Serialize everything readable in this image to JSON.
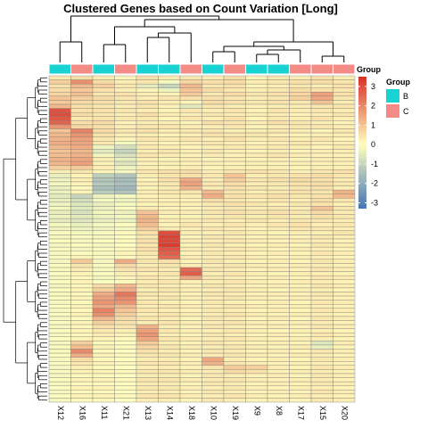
{
  "chart_data": {
    "type": "heatmap",
    "title": "Clustered Genes based on Count Variation [Long]",
    "columns": [
      "X12",
      "X16",
      "X11",
      "X21",
      "X13",
      "X14",
      "X18",
      "X10",
      "X19",
      "X9",
      "X8",
      "X17",
      "X15",
      "X20"
    ],
    "column_groups": [
      "B",
      "C",
      "B",
      "C",
      "B",
      "B",
      "C",
      "B",
      "C",
      "B",
      "B",
      "C",
      "C",
      "C"
    ],
    "annotation_track_label": "Group",
    "group_legend": {
      "title": "Group",
      "entries": [
        {
          "label": "B",
          "color": "#19d3d3"
        },
        {
          "label": "C",
          "color": "#f58b87"
        }
      ]
    },
    "color_scale": {
      "min": -3.3,
      "max": 3.5,
      "ticks": [
        3,
        2,
        1,
        0,
        -1,
        -2,
        -3
      ],
      "colors": {
        "low": "#4575b4",
        "mid": "#ffffbf",
        "high": "#d73027"
      }
    },
    "n_rows": 80,
    "cell_border_color": "#808080",
    "values": [
      [
        0.4,
        0.6,
        0.3,
        0.2,
        0.5,
        0.3,
        0.4,
        0.3,
        0.6,
        0.2,
        0.4,
        0.3,
        0.5,
        0.3
      ],
      [
        0.8,
        1.9,
        0.6,
        0.3,
        0.4,
        -0.2,
        0.7,
        0.5,
        0.6,
        0.3,
        0.4,
        0.5,
        0.6,
        0.4
      ],
      [
        0.5,
        1.2,
        0.8,
        0.4,
        -0.5,
        -1.0,
        1.2,
        0.4,
        0.5,
        0.2,
        0.3,
        0.4,
        0.3,
        0.5
      ],
      [
        0.6,
        0.9,
        0.5,
        0.3,
        0.2,
        -0.3,
        1.0,
        0.6,
        0.4,
        0.3,
        0.4,
        0.6,
        0.5,
        0.4
      ],
      [
        0.7,
        1.1,
        0.4,
        0.5,
        0.3,
        0.2,
        0.9,
        0.4,
        0.6,
        0.4,
        0.5,
        0.7,
        1.6,
        0.5
      ],
      [
        1.0,
        0.8,
        0.6,
        0.4,
        0.3,
        0.4,
        0.5,
        0.5,
        0.4,
        0.3,
        0.4,
        0.8,
        1.5,
        0.4
      ],
      [
        0.9,
        0.6,
        0.5,
        0.4,
        0.5,
        0.3,
        0.2,
        0.6,
        0.5,
        0.4,
        0.5,
        0.4,
        1.0,
        0.3
      ],
      [
        1.2,
        0.5,
        0.4,
        0.3,
        0.4,
        0.2,
        -0.5,
        0.4,
        0.3,
        0.2,
        0.3,
        0.3,
        0.4,
        0.4
      ],
      [
        2.9,
        0.5,
        0.5,
        0.4,
        0.3,
        0.2,
        0.4,
        0.3,
        0.4,
        0.2,
        0.4,
        0.3,
        0.4,
        0.3
      ],
      [
        3.0,
        0.6,
        0.4,
        0.3,
        0.5,
        0.3,
        0.3,
        0.4,
        0.3,
        0.3,
        0.3,
        0.2,
        0.3,
        0.4
      ],
      [
        2.8,
        0.4,
        0.5,
        0.4,
        0.4,
        0.2,
        0.4,
        0.3,
        0.5,
        0.2,
        0.4,
        0.3,
        0.5,
        0.3
      ],
      [
        2.6,
        0.5,
        0.6,
        0.2,
        0.3,
        0.3,
        0.2,
        0.5,
        0.4,
        0.3,
        0.5,
        0.4,
        0.3,
        0.2
      ],
      [
        1.8,
        0.7,
        0.5,
        0.3,
        0.4,
        0.4,
        0.3,
        0.3,
        0.4,
        0.2,
        0.3,
        0.4,
        0.4,
        0.3
      ],
      [
        1.0,
        2.1,
        0.6,
        0.4,
        0.5,
        0.3,
        0.4,
        0.4,
        0.3,
        0.3,
        0.4,
        0.3,
        0.2,
        0.4
      ],
      [
        1.2,
        1.8,
        0.5,
        0.3,
        0.3,
        0.2,
        0.3,
        0.5,
        0.4,
        0.4,
        0.3,
        0.2,
        0.3,
        0.3
      ],
      [
        1.3,
        1.6,
        0.4,
        0.2,
        0.4,
        0.3,
        0.4,
        0.3,
        0.5,
        0.3,
        0.4,
        0.3,
        0.4,
        0.2
      ],
      [
        1.4,
        1.5,
        0.4,
        -0.2,
        0.3,
        0.2,
        0.3,
        0.4,
        0.3,
        0.2,
        0.3,
        0.4,
        0.3,
        0.3
      ],
      [
        1.2,
        1.4,
        -0.3,
        -0.8,
        0.4,
        0.3,
        0.2,
        0.3,
        0.4,
        0.3,
        0.4,
        0.3,
        0.2,
        0.4
      ],
      [
        1.0,
        1.2,
        -0.5,
        -1.0,
        0.3,
        0.4,
        0.3,
        0.4,
        0.3,
        0.2,
        0.3,
        0.2,
        0.3,
        0.3
      ],
      [
        1.1,
        1.3,
        -0.2,
        -0.7,
        0.4,
        0.3,
        0.2,
        0.3,
        0.2,
        0.3,
        0.4,
        0.3,
        0.2,
        0.2
      ],
      [
        1.3,
        1.5,
        0.3,
        -0.4,
        0.3,
        0.2,
        0.3,
        0.2,
        0.3,
        0.2,
        0.3,
        0.2,
        0.3,
        0.3
      ],
      [
        1.2,
        1.6,
        0.2,
        -0.6,
        0.2,
        0.3,
        0.2,
        0.3,
        0.2,
        0.3,
        0.2,
        0.3,
        0.2,
        0.2
      ],
      [
        0.8,
        0.9,
        0.3,
        -0.3,
        0.3,
        0.2,
        0.3,
        0.2,
        0.3,
        0.2,
        0.3,
        0.2,
        0.3,
        0.3
      ],
      [
        0.3,
        0.4,
        0.2,
        -0.2,
        0.4,
        0.5,
        0.6,
        0.3,
        0.4,
        0.5,
        0.4,
        0.3,
        0.4,
        0.5
      ],
      [
        -0.4,
        0.2,
        -1.2,
        -1.4,
        0.3,
        0.4,
        0.5,
        0.4,
        1.0,
        0.3,
        0.4,
        0.5,
        0.6,
        0.4
      ],
      [
        -0.3,
        0.3,
        -1.4,
        -1.6,
        0.2,
        0.5,
        1.4,
        0.3,
        0.8,
        0.4,
        0.5,
        0.6,
        0.5,
        0.3
      ],
      [
        -0.2,
        0.2,
        -1.3,
        -1.5,
        0.3,
        0.4,
        1.6,
        0.4,
        0.6,
        0.3,
        0.4,
        0.5,
        0.6,
        0.4
      ],
      [
        -0.4,
        0.1,
        -1.5,
        -1.7,
        0.2,
        0.3,
        1.3,
        0.3,
        0.5,
        0.4,
        0.3,
        0.4,
        0.5,
        0.3
      ],
      [
        -0.3,
        0.2,
        -1.2,
        -1.4,
        0.3,
        0.4,
        0.4,
        1.2,
        0.4,
        0.3,
        0.4,
        0.5,
        0.4,
        1.3
      ],
      [
        -0.5,
        -1.0,
        -0.3,
        -0.2,
        0.2,
        0.3,
        0.3,
        1.4,
        0.5,
        0.4,
        0.5,
        0.4,
        0.5,
        1.2
      ],
      [
        -0.4,
        -0.8,
        -0.2,
        -0.3,
        0.3,
        0.2,
        0.2,
        0.6,
        0.4,
        0.3,
        0.4,
        0.3,
        0.6,
        0.4
      ],
      [
        -0.3,
        -0.6,
        -0.4,
        -0.2,
        0.2,
        0.3,
        0.3,
        0.4,
        0.5,
        0.4,
        0.3,
        0.4,
        0.5,
        0.3
      ],
      [
        -0.2,
        -0.5,
        -0.3,
        -0.1,
        0.3,
        0.2,
        0.2,
        0.3,
        0.4,
        0.3,
        0.4,
        0.3,
        1.0,
        0.4
      ],
      [
        -0.4,
        -0.7,
        -0.2,
        -0.3,
        1.0,
        0.3,
        0.3,
        0.4,
        0.5,
        0.4,
        0.5,
        0.4,
        0.6,
        0.3
      ],
      [
        -0.3,
        -0.5,
        -0.3,
        -0.2,
        1.2,
        0.2,
        0.2,
        0.3,
        0.4,
        0.3,
        0.4,
        0.3,
        0.5,
        0.4
      ],
      [
        -0.5,
        -0.6,
        -0.4,
        -0.3,
        1.3,
        0.3,
        0.3,
        0.4,
        0.3,
        0.4,
        0.3,
        0.4,
        0.4,
        0.3
      ],
      [
        -0.2,
        -0.4,
        -0.2,
        -0.1,
        1.1,
        0.2,
        0.4,
        0.3,
        0.4,
        0.3,
        0.4,
        0.5,
        0.3,
        0.4
      ],
      [
        -0.3,
        -0.3,
        -0.3,
        -0.2,
        0.8,
        0.3,
        0.3,
        0.4,
        0.3,
        0.2,
        0.3,
        0.4,
        0.4,
        0.3
      ],
      [
        -0.1,
        -0.2,
        -0.1,
        0.1,
        0.5,
        3.0,
        0.3,
        0.3,
        0.4,
        0.3,
        0.2,
        0.3,
        0.3,
        0.4
      ],
      [
        -0.2,
        -0.1,
        -0.2,
        0.0,
        0.4,
        3.2,
        0.2,
        0.4,
        0.3,
        0.2,
        0.3,
        0.2,
        0.4,
        0.3
      ],
      [
        -0.1,
        -0.2,
        -0.1,
        0.1,
        0.5,
        3.1,
        0.3,
        0.3,
        0.4,
        0.3,
        0.2,
        0.3,
        0.3,
        0.2
      ],
      [
        -0.2,
        -0.1,
        -0.2,
        0.0,
        0.4,
        3.3,
        0.2,
        0.4,
        0.3,
        0.2,
        0.3,
        0.2,
        0.4,
        0.3
      ],
      [
        -0.1,
        -0.2,
        -0.1,
        0.1,
        0.5,
        2.9,
        0.3,
        0.3,
        0.4,
        0.3,
        0.2,
        0.3,
        0.3,
        0.2
      ],
      [
        -0.2,
        -0.1,
        -0.2,
        0.2,
        0.4,
        2.7,
        0.2,
        0.4,
        0.3,
        0.2,
        0.3,
        0.2,
        0.4,
        0.3
      ],
      [
        -0.1,
        0.2,
        -0.1,
        0.1,
        0.3,
        2.5,
        0.3,
        0.3,
        0.4,
        0.3,
        0.2,
        0.3,
        0.3,
        0.2
      ],
      [
        -0.2,
        0.9,
        -0.2,
        1.4,
        0.4,
        0.5,
        0.2,
        0.4,
        0.3,
        0.2,
        0.3,
        0.2,
        0.4,
        0.3
      ],
      [
        -0.1,
        0.4,
        -0.1,
        0.6,
        0.3,
        0.4,
        0.3,
        0.3,
        0.4,
        0.3,
        0.2,
        0.3,
        0.3,
        0.2
      ],
      [
        -0.2,
        0.3,
        -0.2,
        0.4,
        0.4,
        0.3,
        2.5,
        0.4,
        0.3,
        0.2,
        0.3,
        0.2,
        0.4,
        0.3
      ],
      [
        -0.1,
        0.2,
        -0.1,
        0.3,
        0.3,
        0.4,
        2.7,
        0.3,
        0.4,
        0.3,
        0.2,
        0.3,
        0.3,
        0.2
      ],
      [
        -0.2,
        0.1,
        -0.2,
        0.2,
        0.4,
        0.3,
        1.5,
        0.4,
        0.3,
        0.2,
        0.3,
        0.2,
        0.4,
        0.3
      ],
      [
        -0.1,
        0.2,
        -0.1,
        0.1,
        0.3,
        0.4,
        0.3,
        0.3,
        0.4,
        0.3,
        0.2,
        0.3,
        0.3,
        0.2
      ],
      [
        -0.2,
        0.1,
        0.6,
        1.2,
        0.4,
        0.3,
        0.2,
        0.4,
        0.3,
        0.2,
        0.3,
        0.2,
        0.4,
        0.3
      ],
      [
        -0.1,
        0.2,
        0.8,
        1.4,
        0.3,
        0.4,
        0.3,
        0.3,
        0.4,
        0.3,
        0.2,
        0.3,
        0.3,
        0.2
      ],
      [
        -0.2,
        0.1,
        1.4,
        2.3,
        0.4,
        0.3,
        0.2,
        0.4,
        0.3,
        0.2,
        0.3,
        0.2,
        0.4,
        0.3
      ],
      [
        -0.1,
        0.2,
        1.6,
        2.0,
        0.3,
        0.4,
        0.3,
        0.3,
        0.4,
        0.3,
        0.2,
        0.3,
        0.3,
        0.2
      ],
      [
        -0.2,
        0.1,
        1.8,
        1.8,
        0.4,
        0.3,
        0.2,
        0.4,
        0.3,
        0.2,
        0.3,
        0.2,
        0.4,
        0.3
      ],
      [
        -0.1,
        0.2,
        1.5,
        1.2,
        0.3,
        0.4,
        0.3,
        0.3,
        0.4,
        0.3,
        0.2,
        0.3,
        0.3,
        0.2
      ],
      [
        -0.2,
        0.1,
        2.1,
        1.0,
        0.4,
        0.3,
        0.2,
        0.4,
        0.3,
        0.2,
        0.3,
        0.2,
        0.4,
        0.3
      ],
      [
        -0.1,
        0.2,
        1.9,
        0.8,
        0.3,
        0.4,
        0.3,
        0.3,
        0.4,
        0.3,
        0.2,
        0.3,
        0.3,
        0.2
      ],
      [
        -0.2,
        0.1,
        1.2,
        0.6,
        0.4,
        0.3,
        0.2,
        0.4,
        0.3,
        0.2,
        0.3,
        0.2,
        0.4,
        0.3
      ],
      [
        -0.1,
        0.2,
        0.8,
        0.5,
        0.3,
        0.4,
        0.3,
        0.3,
        0.4,
        0.3,
        0.2,
        0.3,
        0.3,
        0.2
      ],
      [
        -0.2,
        0.1,
        0.5,
        0.4,
        1.3,
        0.3,
        0.2,
        0.4,
        0.3,
        0.2,
        0.3,
        0.2,
        0.4,
        0.3
      ],
      [
        -0.1,
        0.2,
        0.4,
        0.3,
        1.6,
        0.4,
        0.3,
        0.3,
        0.4,
        0.3,
        0.2,
        0.3,
        0.3,
        0.2
      ],
      [
        -0.2,
        0.1,
        0.3,
        0.2,
        1.8,
        0.3,
        0.2,
        0.4,
        0.3,
        0.2,
        0.3,
        0.2,
        0.4,
        0.3
      ],
      [
        -0.1,
        0.2,
        0.2,
        0.1,
        1.5,
        0.4,
        0.3,
        0.3,
        0.4,
        0.3,
        0.2,
        0.3,
        0.3,
        0.2
      ],
      [
        -0.2,
        0.8,
        0.1,
        0.0,
        0.9,
        0.3,
        0.2,
        0.4,
        0.3,
        0.2,
        0.3,
        0.2,
        -0.6,
        0.3
      ],
      [
        -0.1,
        1.1,
        0.2,
        0.1,
        0.7,
        0.4,
        0.3,
        0.3,
        0.4,
        0.3,
        0.2,
        0.3,
        -0.4,
        0.2
      ],
      [
        -0.2,
        2.0,
        0.1,
        0.0,
        0.5,
        0.3,
        0.2,
        0.4,
        0.3,
        0.2,
        0.3,
        0.2,
        0.4,
        0.3
      ],
      [
        -0.1,
        1.4,
        0.2,
        0.1,
        0.4,
        0.4,
        0.3,
        0.3,
        0.4,
        0.3,
        0.2,
        0.3,
        0.3,
        0.2
      ],
      [
        -0.2,
        0.6,
        0.1,
        0.0,
        0.3,
        0.3,
        0.2,
        1.5,
        0.3,
        0.2,
        0.3,
        0.2,
        0.4,
        0.3
      ],
      [
        -0.1,
        0.4,
        0.2,
        0.1,
        0.4,
        0.4,
        0.3,
        1.3,
        0.4,
        0.3,
        0.2,
        0.3,
        0.3,
        0.2
      ],
      [
        -0.2,
        0.3,
        0.1,
        0.0,
        0.3,
        0.3,
        0.2,
        0.4,
        0.9,
        0.8,
        0.3,
        0.2,
        0.4,
        0.3
      ],
      [
        -0.1,
        0.2,
        0.2,
        0.1,
        0.4,
        0.4,
        0.3,
        0.3,
        0.6,
        0.5,
        0.2,
        0.3,
        0.3,
        0.2
      ],
      [
        -0.2,
        0.1,
        0.1,
        0.0,
        0.3,
        0.3,
        0.2,
        0.4,
        0.3,
        0.2,
        0.3,
        0.2,
        0.4,
        0.3
      ],
      [
        -0.1,
        0.2,
        0.2,
        0.1,
        0.4,
        0.4,
        0.3,
        0.3,
        0.4,
        0.3,
        0.2,
        0.3,
        0.3,
        0.2
      ],
      [
        -0.2,
        0.1,
        0.1,
        0.0,
        0.3,
        0.3,
        0.2,
        0.4,
        0.3,
        0.2,
        0.3,
        0.2,
        0.4,
        0.3
      ],
      [
        -0.1,
        0.2,
        0.2,
        0.1,
        0.4,
        0.4,
        0.3,
        0.3,
        0.4,
        0.3,
        0.2,
        0.3,
        0.3,
        0.2
      ],
      [
        -0.2,
        0.1,
        0.1,
        0.0,
        0.3,
        0.3,
        0.2,
        0.4,
        0.3,
        0.2,
        0.3,
        0.2,
        0.4,
        0.3
      ],
      [
        -0.1,
        0.2,
        0.2,
        0.1,
        0.4,
        0.4,
        0.3,
        0.3,
        0.4,
        0.3,
        0.2,
        0.3,
        0.3,
        0.2
      ],
      [
        -0.2,
        0.1,
        0.1,
        0.0,
        0.3,
        0.3,
        0.2,
        0.4,
        0.3,
        0.2,
        0.3,
        0.2,
        0.4,
        0.3
      ]
    ]
  }
}
